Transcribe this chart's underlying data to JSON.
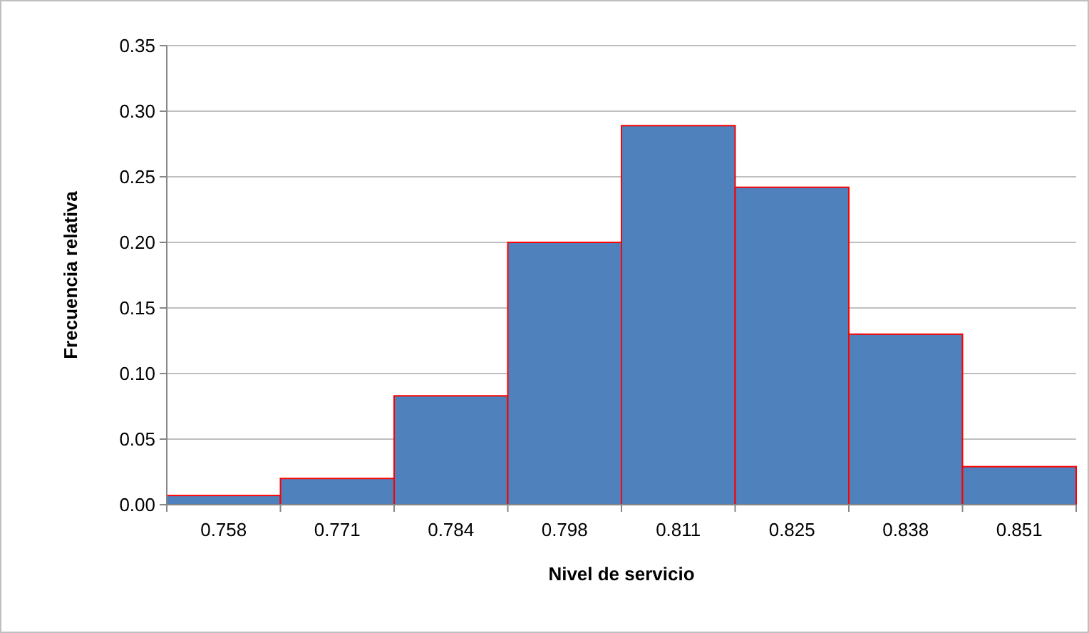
{
  "chart_data": {
    "type": "bar",
    "xlabel": "Nivel de servicio",
    "ylabel": "Frecuencia relativa",
    "categories": [
      "0.758",
      "0.771",
      "0.784",
      "0.798",
      "0.811",
      "0.825",
      "0.838",
      "0.851"
    ],
    "values": [
      0.007,
      0.02,
      0.083,
      0.2,
      0.289,
      0.242,
      0.13,
      0.029
    ],
    "color": "#4f81bd",
    "ylim": [
      0,
      0.35
    ],
    "yticks": [
      {
        "value": 0,
        "label": "0.00"
      },
      {
        "value": 0.05,
        "label": "0.05"
      },
      {
        "value": 0.1,
        "label": "0.10"
      },
      {
        "value": 0.15,
        "label": "0.15"
      },
      {
        "value": 0.2,
        "label": "0.20"
      },
      {
        "value": 0.25,
        "label": "0.25"
      },
      {
        "value": 0.3,
        "label": "0.30"
      },
      {
        "value": 0.35,
        "label": "0.35"
      }
    ],
    "grid": "y"
  }
}
